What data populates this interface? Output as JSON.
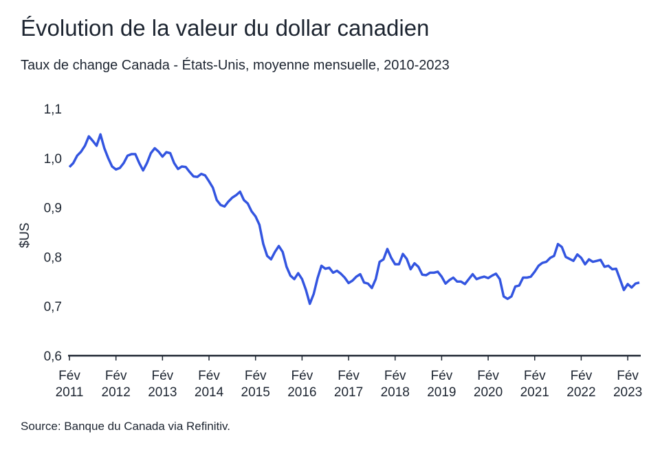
{
  "chart_data": {
    "type": "line",
    "title": "Évolution de la valeur du dollar canadien",
    "subtitle": "Taux de change Canada - États-Unis, moyenne mensuelle, 2010-2023",
    "y_label": "$US",
    "source": "Source: Banque du Canada via Refinitiv.",
    "color": "#3355e0",
    "ylim": [
      0.6,
      1.1
    ],
    "yticks": [
      {
        "value": 0.6,
        "label": "0,6"
      },
      {
        "value": 0.7,
        "label": "0,7"
      },
      {
        "value": 0.8,
        "label": "0,8"
      },
      {
        "value": 0.9,
        "label": "0,9"
      },
      {
        "value": 1.0,
        "label": "1,0"
      },
      {
        "value": 1.1,
        "label": "1,1"
      }
    ],
    "xticks": [
      {
        "value": "2011-02",
        "label": [
          "Fév",
          "2011"
        ]
      },
      {
        "value": "2012-02",
        "label": [
          "Fév",
          "2012"
        ]
      },
      {
        "value": "2013-02",
        "label": [
          "Fév",
          "2013"
        ]
      },
      {
        "value": "2014-02",
        "label": [
          "Fév",
          "2014"
        ]
      },
      {
        "value": "2015-02",
        "label": [
          "Fév",
          "2015"
        ]
      },
      {
        "value": "2016-02",
        "label": [
          "Fév",
          "2016"
        ]
      },
      {
        "value": "2017-02",
        "label": [
          "Fév",
          "2017"
        ]
      },
      {
        "value": "2018-02",
        "label": [
          "Fév",
          "2018"
        ]
      },
      {
        "value": "2019-02",
        "label": [
          "Fév",
          "2019"
        ]
      },
      {
        "value": "2020-02",
        "label": [
          "Fév",
          "2020"
        ]
      },
      {
        "value": "2021-02",
        "label": [
          "Fév",
          "2021"
        ]
      },
      {
        "value": "2022-02",
        "label": [
          "Fév",
          "2022"
        ]
      },
      {
        "value": "2023-02",
        "label": [
          "Fév",
          "2023"
        ]
      }
    ],
    "x": [
      "2011-02",
      "2011-03",
      "2011-04",
      "2011-05",
      "2011-06",
      "2011-07",
      "2011-08",
      "2011-09",
      "2011-10",
      "2011-11",
      "2011-12",
      "2012-01",
      "2012-02",
      "2012-03",
      "2012-04",
      "2012-05",
      "2012-06",
      "2012-07",
      "2012-08",
      "2012-09",
      "2012-10",
      "2012-11",
      "2012-12",
      "2013-01",
      "2013-02",
      "2013-03",
      "2013-04",
      "2013-05",
      "2013-06",
      "2013-07",
      "2013-08",
      "2013-09",
      "2013-10",
      "2013-11",
      "2013-12",
      "2014-01",
      "2014-02",
      "2014-03",
      "2014-04",
      "2014-05",
      "2014-06",
      "2014-07",
      "2014-08",
      "2014-09",
      "2014-10",
      "2014-11",
      "2014-12",
      "2015-01",
      "2015-02",
      "2015-03",
      "2015-04",
      "2015-05",
      "2015-06",
      "2015-07",
      "2015-08",
      "2015-09",
      "2015-10",
      "2015-11",
      "2015-12",
      "2016-01",
      "2016-02",
      "2016-03",
      "2016-04",
      "2016-05",
      "2016-06",
      "2016-07",
      "2016-08",
      "2016-09",
      "2016-10",
      "2016-11",
      "2016-12",
      "2017-01",
      "2017-02",
      "2017-03",
      "2017-04",
      "2017-05",
      "2017-06",
      "2017-07",
      "2017-08",
      "2017-09",
      "2017-10",
      "2017-11",
      "2017-12",
      "2018-01",
      "2018-02",
      "2018-03",
      "2018-04",
      "2018-05",
      "2018-06",
      "2018-07",
      "2018-08",
      "2018-09",
      "2018-10",
      "2018-11",
      "2018-12",
      "2019-01",
      "2019-02",
      "2019-03",
      "2019-04",
      "2019-05",
      "2019-06",
      "2019-07",
      "2019-08",
      "2019-09",
      "2019-10",
      "2019-11",
      "2019-12",
      "2020-01",
      "2020-02",
      "2020-03",
      "2020-04",
      "2020-05",
      "2020-06",
      "2020-07",
      "2020-08",
      "2020-09",
      "2020-10",
      "2020-11",
      "2020-12",
      "2021-01",
      "2021-02",
      "2021-03",
      "2021-04",
      "2021-05",
      "2021-06",
      "2021-07",
      "2021-08",
      "2021-09",
      "2021-10",
      "2021-11",
      "2021-12",
      "2022-01",
      "2022-02",
      "2022-03",
      "2022-04",
      "2022-05",
      "2022-06",
      "2022-07",
      "2022-08",
      "2022-09",
      "2022-10",
      "2022-11",
      "2022-12",
      "2023-01",
      "2023-02",
      "2023-03",
      "2023-04",
      "2023-05"
    ],
    "values": [
      0.982,
      0.99,
      1.005,
      1.013,
      1.025,
      1.044,
      1.035,
      1.025,
      1.048,
      1.02,
      1.0,
      0.983,
      0.977,
      0.98,
      0.99,
      1.005,
      1.008,
      1.008,
      0.99,
      0.975,
      0.99,
      1.01,
      1.02,
      1.013,
      1.003,
      1.012,
      1.01,
      0.99,
      0.978,
      0.983,
      0.982,
      0.972,
      0.963,
      0.962,
      0.968,
      0.965,
      0.953,
      0.94,
      0.915,
      0.905,
      0.902,
      0.912,
      0.92,
      0.925,
      0.932,
      0.915,
      0.908,
      0.892,
      0.882,
      0.865,
      0.826,
      0.802,
      0.795,
      0.81,
      0.822,
      0.81,
      0.78,
      0.762,
      0.755,
      0.767,
      0.755,
      0.733,
      0.705,
      0.725,
      0.757,
      0.782,
      0.776,
      0.778,
      0.768,
      0.772,
      0.766,
      0.758,
      0.747,
      0.752,
      0.76,
      0.765,
      0.748,
      0.746,
      0.737,
      0.755,
      0.79,
      0.795,
      0.816,
      0.798,
      0.785,
      0.785,
      0.806,
      0.796,
      0.775,
      0.787,
      0.78,
      0.764,
      0.763,
      0.768,
      0.768,
      0.77,
      0.76,
      0.746,
      0.753,
      0.758,
      0.75,
      0.75,
      0.745,
      0.755,
      0.765,
      0.755,
      0.758,
      0.76,
      0.757,
      0.762,
      0.766,
      0.755,
      0.72,
      0.715,
      0.72,
      0.74,
      0.742,
      0.758,
      0.758,
      0.76,
      0.77,
      0.782,
      0.788,
      0.79,
      0.798,
      0.802,
      0.826,
      0.82,
      0.8,
      0.796,
      0.792,
      0.805,
      0.798,
      0.785,
      0.795,
      0.79,
      0.792,
      0.794,
      0.78,
      0.782,
      0.775,
      0.776,
      0.755,
      0.733,
      0.745,
      0.738,
      0.746,
      0.748
    ]
  }
}
